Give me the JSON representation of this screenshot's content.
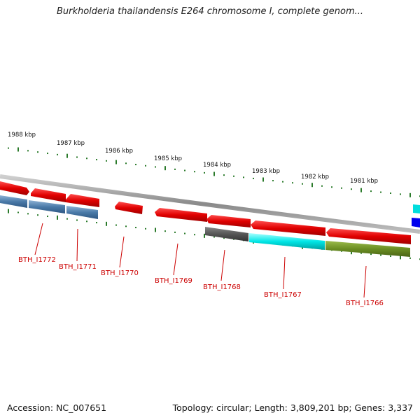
{
  "title": "Burkholderia thailandensis E264 chromosome I, complete genom...",
  "accession": "Accession: NC_007651",
  "summary": "Topology: circular; Length: 3,809,201 bp; Genes: 3,337",
  "kbp_labels": [
    "1988 kbp",
    "1987 kbp",
    "1986 kbp",
    "1985 kbp",
    "1984 kbp",
    "1983 kbp",
    "1982 kbp",
    "1981 kbp"
  ],
  "genes": [
    {
      "id": "BTH_I1772",
      "color": "#e00000"
    },
    {
      "id": "BTH_I1771",
      "color": "#4a7aa8"
    },
    {
      "id": "BTH_I1770",
      "color": "#e00000"
    },
    {
      "id": "BTH_I1769",
      "color": "#e00000"
    },
    {
      "id": "BTH_I1768",
      "color": "#555555"
    },
    {
      "id": "BTH_I1767",
      "color": "#00dddd"
    },
    {
      "id": "BTH_I1766",
      "color": "#6b8e23"
    }
  ],
  "colors": {
    "forward_strand": "#e00000",
    "tick_major": "#2a7a2a",
    "tick_minor": "#2a7a2a",
    "backbone": "#999999",
    "label": "#cc0000"
  }
}
